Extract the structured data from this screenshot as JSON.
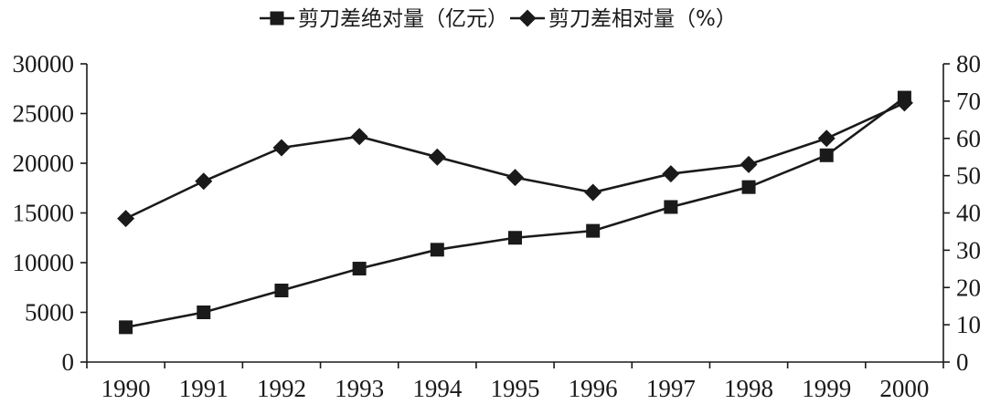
{
  "chart_data": {
    "type": "line",
    "categories": [
      "1990",
      "1991",
      "1992",
      "1993",
      "1994",
      "1995",
      "1996",
      "1997",
      "1998",
      "1999",
      "2000"
    ],
    "series": [
      {
        "name": "剪刀差绝对量（亿元）",
        "axis": "left",
        "marker": "square",
        "values": [
          3500,
          5000,
          7200,
          9400,
          11300,
          12500,
          13200,
          15600,
          17600,
          20800,
          26600
        ]
      },
      {
        "name": "剪刀差相对量（%）",
        "axis": "right",
        "marker": "diamond",
        "values": [
          38.5,
          48.5,
          57.5,
          60.5,
          55,
          49.5,
          45.5,
          50.5,
          53,
          60,
          69.5
        ]
      }
    ],
    "y_left": {
      "min": 0,
      "max": 30000,
      "ticks": [
        "0",
        "5000",
        "10000",
        "15000",
        "20000",
        "25000",
        "30000"
      ]
    },
    "y_right": {
      "min": 0,
      "max": 80,
      "ticks": [
        "0",
        "10",
        "20",
        "30",
        "40",
        "50",
        "60",
        "70",
        "80"
      ]
    },
    "grid": false,
    "legend_position": "top-center",
    "colors": {
      "line": "#1a1a1a"
    }
  }
}
